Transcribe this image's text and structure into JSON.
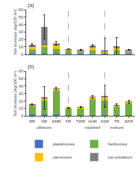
{
  "chart_data": [
    {
      "type": "bar",
      "stacked": true,
      "title": "(a)",
      "categories": [
        "RR",
        "NR",
        "AMR",
        "FR",
        "TWR",
        "AHR",
        "ASR",
        "TR",
        "EFR"
      ],
      "series": [
        {
          "name": "planktivores",
          "color": "#4472c4",
          "values": [
            1.5,
            1.5,
            1.5,
            0.5,
            0.5,
            1.0,
            0.5,
            0.5,
            0.5
          ]
        },
        {
          "name": "herbivores",
          "color": "#70ad47",
          "values": [
            5.0,
            8.0,
            5.5,
            3.5,
            3.0,
            4.5,
            1.5,
            4.5,
            3.0
          ]
        },
        {
          "name": "carnivores",
          "color": "#ffc000",
          "values": [
            3.5,
            2.5,
            4.5,
            2.0,
            1.5,
            3.5,
            1.5,
            3.5,
            1.5
          ]
        },
        {
          "name": "top predators",
          "color": "#7f7f7f",
          "values": [
            3.0,
            25.0,
            3.0,
            0.5,
            1.0,
            2.5,
            1.0,
            2.0,
            0.8
          ]
        }
      ],
      "error_bars": [
        1.5,
        16.0,
        2.5,
        0.8,
        1.0,
        1.5,
        17.0,
        12.0,
        0.5
      ],
      "ylim": [
        0,
        60
      ],
      "yticks": [
        0,
        10,
        20,
        30,
        40,
        50,
        60
      ],
      "ylabel": "fish biomass (kg/100 m²)",
      "grid": false,
      "tick_labels": "y"
    },
    {
      "type": "bar",
      "stacked": true,
      "title": "(b)",
      "categories": [
        "RR",
        "NR",
        "AMR",
        "FR",
        "TWR",
        "AHR",
        "ASR",
        "TR",
        "EFR"
      ],
      "series": [
        {
          "name": "planktivores",
          "color": "#4472c4",
          "values": [
            2.0,
            1.5,
            2.0,
            0.5,
            0.5,
            0.5,
            0.5,
            0.5,
            0.5
          ]
        },
        {
          "name": "herbivores",
          "color": "#70ad47",
          "values": [
            11.0,
            19.0,
            31.0,
            8.5,
            9.0,
            22.0,
            20.0,
            12.0,
            16.0
          ]
        },
        {
          "name": "carnivores",
          "color": "#ffc000",
          "values": [
            1.5,
            3.0,
            3.0,
            1.0,
            1.5,
            2.5,
            5.0,
            1.5,
            2.0
          ]
        },
        {
          "name": "top predators",
          "color": "#7f7f7f",
          "values": [
            0.5,
            0.5,
            0.5,
            0.5,
            0.5,
            0.5,
            1.0,
            0.5,
            0.5
          ]
        }
      ],
      "error_bars": [
        1.0,
        15.0,
        2.0,
        1.0,
        1.0,
        1.5,
        15.0,
        1.5,
        2.0
      ],
      "ylim": [
        0,
        60
      ],
      "yticks": [
        0,
        10,
        20,
        30,
        40,
        50,
        60
      ],
      "ylabel": "fish biomass (kg/100 m²)",
      "grid": false,
      "annotations": [
        {
          "text": "offshore",
          "x": "NR"
        },
        {
          "text": "midshelf",
          "x": "AHR"
        },
        {
          "text": "inshore",
          "x": "TR"
        }
      ],
      "legend": "bottom"
    }
  ]
}
